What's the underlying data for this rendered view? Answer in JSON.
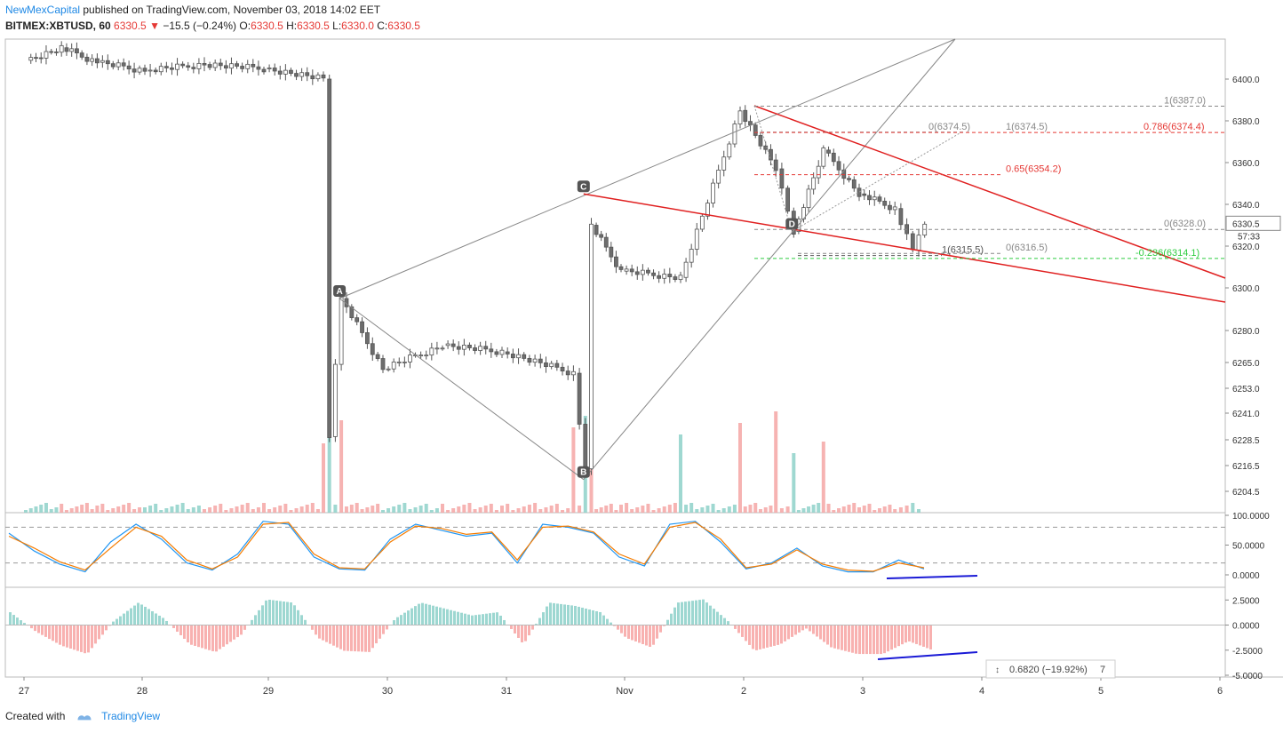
{
  "header": {
    "publisher": "NewMexCapital",
    "published_text": "published on TradingView.com, November 03, 2018 14:02 EET",
    "symbol": "BITMEX:XBTUSD, 60",
    "last": "6330.5",
    "change": "−15.5 (−0.24%)",
    "o_label": "O:",
    "o_value": "6330.5",
    "h_label": "H:",
    "h_value": "6330.5",
    "l_label": "L:",
    "l_value": "6330.0",
    "c_label": "C:",
    "c_value": "6330.5"
  },
  "footer": {
    "created_with": "Created with",
    "brand": "TradingView"
  },
  "colors": {
    "up": "#26a69a",
    "down": "#ef5350",
    "candle": "#6d6d6d",
    "pattern": "#e02020",
    "stoch_k": "#2196f3",
    "stoch_d": "#f57c00",
    "divergence": "#1a1ad6",
    "fib_green": "#2ecc40"
  },
  "chart_data": [
    {
      "type": "candlestick",
      "title": "BITMEX:XBTUSD, 60",
      "x_tick_labels": [
        "27",
        "28",
        "29",
        "30",
        "31",
        "Nov",
        "2",
        "3",
        "4",
        "5",
        "6"
      ],
      "y_tick_labels": [
        "6400.0",
        "6380.0",
        "6360.0",
        "6340.0",
        "6320.0",
        "6300.0",
        "6280.0",
        "6265.0",
        "6253.0",
        "6241.0",
        "6228.5",
        "6216.5",
        "6204.5"
      ],
      "current_price": "6330.5",
      "countdown": "57:33",
      "ohlc_path": [
        {
          "x": "27",
          "close": 6409
        },
        {
          "x": "27.3",
          "close": 6415
        },
        {
          "x": "27.6",
          "close": 6408
        },
        {
          "x": "28",
          "close": 6404
        },
        {
          "x": "28.5",
          "close": 6407
        },
        {
          "x": "29",
          "close": 6405
        },
        {
          "x": "29.5",
          "close": 6400
        },
        {
          "x": "29.55",
          "close": 6230
        },
        {
          "x": "29.65",
          "close": 6295
        },
        {
          "x": "30",
          "close": 6262
        },
        {
          "x": "30.5",
          "close": 6273
        },
        {
          "x": "31",
          "close": 6270
        },
        {
          "x": "31.6",
          "close": 6260
        },
        {
          "x": "31.7",
          "close": 6215
        },
        {
          "x": "31.75",
          "close": 6330
        },
        {
          "x": "Nov",
          "close": 6308
        },
        {
          "x": "1.5",
          "close": 6305
        },
        {
          "x": "2",
          "close": 6385
        },
        {
          "x": "2.3",
          "close": 6357
        },
        {
          "x": "2.45",
          "close": 6327
        },
        {
          "x": "2.7",
          "close": 6366
        },
        {
          "x": "3",
          "close": 6345
        },
        {
          "x": "3.3",
          "close": 6338
        },
        {
          "x": "3.45",
          "close": 6318
        },
        {
          "x": "3.55",
          "close": 6330.5
        }
      ],
      "pattern_points": [
        {
          "label": "A",
          "x": "29.65",
          "y": 6295
        },
        {
          "label": "B",
          "x": "31.7",
          "y": 6210
        },
        {
          "label": "C",
          "x": "31.7",
          "y": 6345
        },
        {
          "label": "D",
          "x": "2.45",
          "y": 6327
        }
      ],
      "fib_labels": [
        {
          "text": "1(6387.0)",
          "y": 6387.0
        },
        {
          "text": "1(6374.5)",
          "y": 6374.5
        },
        {
          "text": "0(6374.5)",
          "y": 6374.5
        },
        {
          "text": "0.786(6374.4)",
          "y": 6374.4
        },
        {
          "text": "0.65(6354.2)",
          "y": 6354.2
        },
        {
          "text": "0(6328.0)",
          "y": 6328.0
        },
        {
          "text": "0(6316.5)",
          "y": 6316.5
        },
        {
          "text": "1(6315.5)",
          "y": 6315.5
        },
        {
          "text": "-0.236(6314.1)",
          "y": 6314.1
        }
      ]
    },
    {
      "type": "line",
      "title": "",
      "y_tick_labels": [
        "100.0000",
        "50.0000",
        "0.0000"
      ],
      "ylim": [
        0,
        100
      ],
      "series": [
        {
          "values": [
            70,
            40,
            18,
            5,
            55,
            85,
            60,
            20,
            8,
            35,
            90,
            85,
            30,
            10,
            8,
            60,
            85,
            75,
            65,
            70,
            20,
            85,
            80,
            70,
            30,
            15,
            85,
            90,
            55,
            10,
            20,
            45,
            15,
            5,
            5,
            25,
            10
          ]
        },
        {
          "values": [
            65,
            45,
            22,
            8,
            45,
            80,
            65,
            25,
            10,
            30,
            85,
            88,
            35,
            12,
            10,
            55,
            82,
            78,
            68,
            72,
            25,
            80,
            82,
            72,
            35,
            18,
            80,
            88,
            60,
            12,
            18,
            42,
            18,
            8,
            6,
            20,
            12
          ]
        }
      ]
    },
    {
      "type": "bar",
      "title": "",
      "y_tick_labels": [
        "2.5000",
        "0.0000",
        "-2.5000",
        "-5.0000"
      ],
      "ylim": [
        -5,
        3.5
      ],
      "readout": "0.6820 (−19.92%)",
      "readout_count": "7"
    }
  ]
}
